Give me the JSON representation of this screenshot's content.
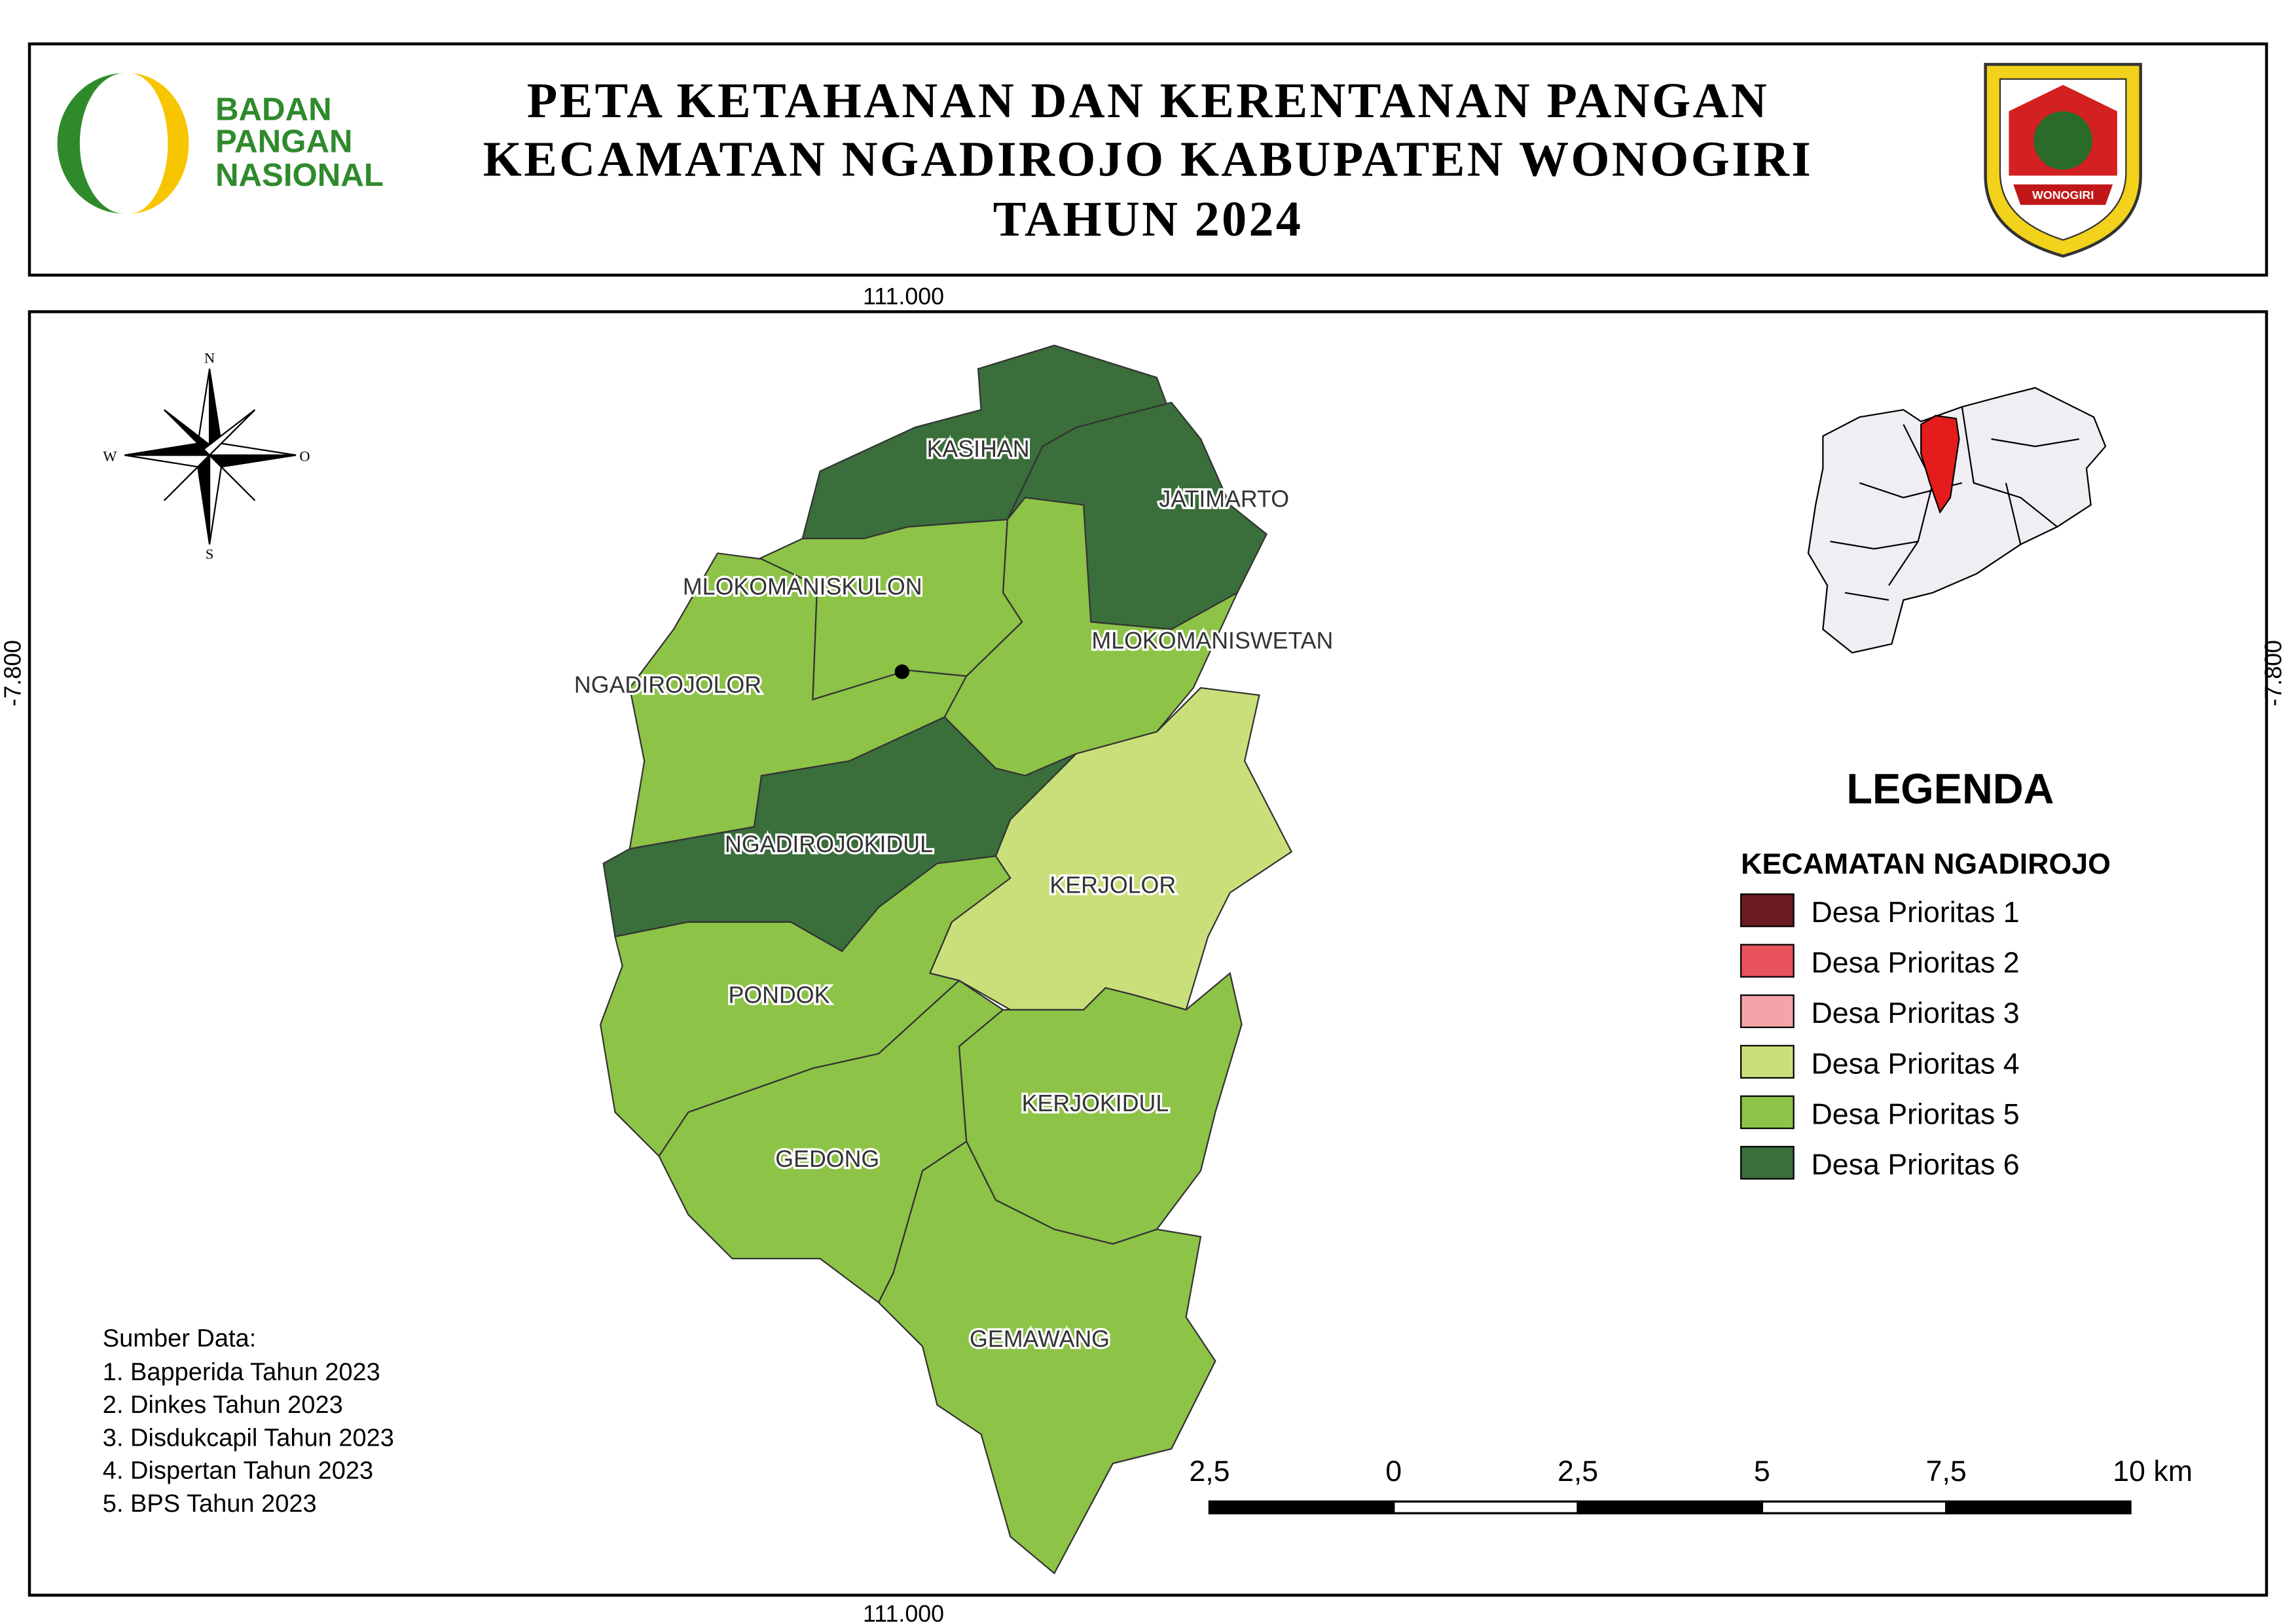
{
  "header": {
    "logo_text": [
      "BADAN",
      "PANGAN",
      "NASIONAL"
    ],
    "title_lines": [
      "PETA KETAHANAN DAN KERENTANAN PANGAN",
      "KECAMATAN NGADIROJO KABUPATEN WONOGIRI",
      "TAHUN 2024"
    ],
    "emblem_text": "WONOGIRI"
  },
  "coordinates": {
    "top": "111.000",
    "bottom": "111.000",
    "left": "-7.800",
    "right": "-7.800"
  },
  "compass": {
    "n": "N",
    "w": "W",
    "o": "O",
    "s": "S"
  },
  "villages": [
    {
      "name": "KASIHAN",
      "priority": 6
    },
    {
      "name": "JATIMARTO",
      "priority": 6
    },
    {
      "name": "MLOKOMANISKULON",
      "priority": 5
    },
    {
      "name": "NGADIROJOLOR",
      "priority": 5
    },
    {
      "name": "MLOKOMANISWETAN",
      "priority": 5
    },
    {
      "name": "NGADIROJOKIDUL",
      "priority": 6
    },
    {
      "name": "KERJOLOR",
      "priority": 4
    },
    {
      "name": "PONDOK",
      "priority": 5
    },
    {
      "name": "GEDONG",
      "priority": 5
    },
    {
      "name": "KERJOKIDUL",
      "priority": 5
    },
    {
      "name": "GEMAWANG",
      "priority": 5
    }
  ],
  "legend": {
    "title": "LEGENDA",
    "subtitle": "KECAMATAN NGADIROJO",
    "items": [
      {
        "label": "Desa Prioritas 1",
        "color": "#6b1c22"
      },
      {
        "label": "Desa Prioritas 2",
        "color": "#e8525d"
      },
      {
        "label": "Desa Prioritas 3",
        "color": "#f3a4a8"
      },
      {
        "label": "Desa Prioritas 4",
        "color": "#c9e07a"
      },
      {
        "label": "Desa Prioritas 5",
        "color": "#8dc346"
      },
      {
        "label": "Desa Prioritas 6",
        "color": "#3a6e3b"
      }
    ]
  },
  "scale_bar": {
    "labels": [
      "2,5",
      "0",
      "2,5",
      "5",
      "7,5",
      "10 km"
    ]
  },
  "sources": {
    "title": "Sumber Data:",
    "items": [
      "1. Bapperida Tahun 2023",
      "2. Dinkes  Tahun 2023",
      "3. Disdukcapil  Tahun 2023",
      "4. Dispertan Tahun 2023",
      "5. BPS  Tahun 2023"
    ]
  }
}
